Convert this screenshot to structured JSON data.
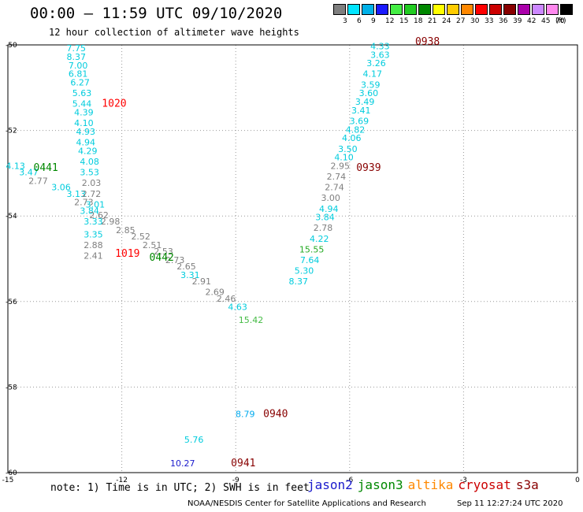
{
  "header": {
    "title": "00:00 – 11:59 UTC 09/10/2020",
    "subtitle": "12 hour collection of altimeter wave heights"
  },
  "scale": {
    "unit": "(ft)",
    "swatches": [
      {
        "color": "#7f7f7f",
        "label": "3"
      },
      {
        "color": "#00e5ff",
        "label": "6"
      },
      {
        "color": "#00b0e8",
        "label": "9"
      },
      {
        "color": "#1a1aff",
        "label": "12"
      },
      {
        "color": "#44ee44",
        "label": "15"
      },
      {
        "color": "#22cc22",
        "label": "18"
      },
      {
        "color": "#008800",
        "label": "21"
      },
      {
        "color": "#ffff00",
        "label": "24"
      },
      {
        "color": "#ffcc00",
        "label": "27"
      },
      {
        "color": "#ff8800",
        "label": "30"
      },
      {
        "color": "#ff0000",
        "label": "33"
      },
      {
        "color": "#cc0000",
        "label": "36"
      },
      {
        "color": "#880000",
        "label": "39"
      },
      {
        "color": "#aa00aa",
        "label": "42"
      },
      {
        "color": "#cc88ff",
        "label": "45"
      },
      {
        "color": "#ff88ee",
        "label": "70"
      },
      {
        "color": "#000000",
        "label": ""
      }
    ]
  },
  "footer": {
    "note": "note: 1) Time is in UTC; 2) SWH is in feet",
    "credit": "NOAA/NESDIS Center for Satellite Applications and Research",
    "stamp": "Sep 11 12:27:24 UTC 2020",
    "legend": [
      {
        "label": "jason2",
        "color": "#1a1acc"
      },
      {
        "label": "jason3",
        "color": "#008800"
      },
      {
        "label": "altika",
        "color": "#ff8800"
      },
      {
        "label": "cryosat",
        "color": "#cc0000"
      },
      {
        "label": "s3a",
        "color": "#880000"
      }
    ]
  },
  "chart_data": {
    "type": "scatter",
    "x_ticks": [
      "-15",
      "-12",
      "-9",
      "-6",
      "-3",
      "0"
    ],
    "y_ticks": [
      "-50",
      "-52",
      "-54",
      "-56",
      "-58",
      "-60"
    ],
    "xlim": [
      -15,
      0
    ],
    "ylim": [
      -60,
      -50
    ],
    "grid": true,
    "points": [
      {
        "lon": -13.2,
        "lat": -50.15,
        "text": "7.75",
        "color": "#00ccdd"
      },
      {
        "lon": -13.2,
        "lat": -50.35,
        "text": "8.37",
        "color": "#00ccdd"
      },
      {
        "lon": -13.15,
        "lat": -50.55,
        "text": "7.00",
        "color": "#00ccdd"
      },
      {
        "lon": -13.15,
        "lat": -50.75,
        "text": "6.81",
        "color": "#00ccdd"
      },
      {
        "lon": -13.1,
        "lat": -50.95,
        "text": "6.27",
        "color": "#00ccdd"
      },
      {
        "lon": -13.05,
        "lat": -51.2,
        "text": "5.63",
        "color": "#00ccdd"
      },
      {
        "lon": -13.05,
        "lat": -51.45,
        "text": "5.44",
        "color": "#00ccdd"
      },
      {
        "lon": -13.0,
        "lat": -51.65,
        "text": "4.39",
        "color": "#00ccdd"
      },
      {
        "lon": -13.0,
        "lat": -51.9,
        "text": "4.10",
        "color": "#00ccdd"
      },
      {
        "lon": -12.95,
        "lat": -52.1,
        "text": "4.93",
        "color": "#00ccdd"
      },
      {
        "lon": -12.95,
        "lat": -52.35,
        "text": "4.94",
        "color": "#00ccdd"
      },
      {
        "lon": -12.9,
        "lat": -52.55,
        "text": "4.29",
        "color": "#00ccdd"
      },
      {
        "lon": -12.85,
        "lat": -52.8,
        "text": "4.08",
        "color": "#00ccdd"
      },
      {
        "lon": -12.85,
        "lat": -53.05,
        "text": "3.53",
        "color": "#00ccdd"
      },
      {
        "lon": -14.8,
        "lat": -52.9,
        "text": "4.13",
        "color": "#00ccdd"
      },
      {
        "lon": -14.45,
        "lat": -53.05,
        "text": "3.47",
        "color": "#00ccdd"
      },
      {
        "lon": -14.2,
        "lat": -53.25,
        "text": "2.77",
        "color": "#7f7f7f"
      },
      {
        "lon": -13.6,
        "lat": -53.4,
        "text": "3.06",
        "color": "#00ccdd"
      },
      {
        "lon": -13.2,
        "lat": -53.55,
        "text": "3.13",
        "color": "#00ccdd"
      },
      {
        "lon": -12.8,
        "lat": -53.3,
        "text": "2.03",
        "color": "#7f7f7f"
      },
      {
        "lon": -12.8,
        "lat": -53.55,
        "text": "2.72",
        "color": "#7f7f7f"
      },
      {
        "lon": -13.0,
        "lat": -53.75,
        "text": "2.73",
        "color": "#7f7f7f"
      },
      {
        "lon": -12.7,
        "lat": -53.8,
        "text": "3.01",
        "color": "#00ccdd"
      },
      {
        "lon": -12.85,
        "lat": -53.95,
        "text": "3.84",
        "color": "#00ccdd"
      },
      {
        "lon": -12.6,
        "lat": -54.05,
        "text": "2.62",
        "color": "#7f7f7f"
      },
      {
        "lon": -12.3,
        "lat": -54.2,
        "text": "2.98",
        "color": "#7f7f7f"
      },
      {
        "lon": -12.75,
        "lat": -54.2,
        "text": "3.33",
        "color": "#00ccdd"
      },
      {
        "lon": -11.9,
        "lat": -54.4,
        "text": "2.85",
        "color": "#7f7f7f"
      },
      {
        "lon": -12.75,
        "lat": -54.5,
        "text": "3.35",
        "color": "#00ccdd"
      },
      {
        "lon": -11.5,
        "lat": -54.55,
        "text": "2.52",
        "color": "#7f7f7f"
      },
      {
        "lon": -12.75,
        "lat": -54.75,
        "text": "2.88",
        "color": "#7f7f7f"
      },
      {
        "lon": -11.2,
        "lat": -54.75,
        "text": "2.51",
        "color": "#7f7f7f"
      },
      {
        "lon": -12.75,
        "lat": -55.0,
        "text": "2.41",
        "color": "#7f7f7f"
      },
      {
        "lon": -10.9,
        "lat": -54.9,
        "text": "2.53",
        "color": "#7f7f7f"
      },
      {
        "lon": -10.6,
        "lat": -55.1,
        "text": "2.73",
        "color": "#7f7f7f"
      },
      {
        "lon": -10.3,
        "lat": -55.25,
        "text": "2.65",
        "color": "#7f7f7f"
      },
      {
        "lon": -10.2,
        "lat": -55.45,
        "text": "3.31",
        "color": "#00ccdd"
      },
      {
        "lon": -9.9,
        "lat": -55.6,
        "text": "2.91",
        "color": "#7f7f7f"
      },
      {
        "lon": -9.55,
        "lat": -55.85,
        "text": "2.69",
        "color": "#7f7f7f"
      },
      {
        "lon": -9.25,
        "lat": -56.0,
        "text": "2.46",
        "color": "#7f7f7f"
      },
      {
        "lon": -8.95,
        "lat": -56.2,
        "text": "4.63",
        "color": "#00ccdd"
      },
      {
        "lon": -8.6,
        "lat": -56.5,
        "text": "15.42",
        "color": "#44bb44"
      },
      {
        "lon": -5.2,
        "lat": -50.1,
        "text": "4.33",
        "color": "#00ccdd"
      },
      {
        "lon": -5.2,
        "lat": -50.3,
        "text": "3.63",
        "color": "#00ccdd"
      },
      {
        "lon": -5.3,
        "lat": -50.5,
        "text": "3.26",
        "color": "#00ccdd"
      },
      {
        "lon": -5.4,
        "lat": -50.75,
        "text": "4.17",
        "color": "#00ccdd"
      },
      {
        "lon": -5.45,
        "lat": -51.0,
        "text": "3.59",
        "color": "#00ccdd"
      },
      {
        "lon": -5.5,
        "lat": -51.2,
        "text": "3.60",
        "color": "#00ccdd"
      },
      {
        "lon": -5.6,
        "lat": -51.4,
        "text": "3.49",
        "color": "#00ccdd"
      },
      {
        "lon": -5.7,
        "lat": -51.6,
        "text": "3.41",
        "color": "#00ccdd"
      },
      {
        "lon": -5.75,
        "lat": -51.85,
        "text": "3.69",
        "color": "#00ccdd"
      },
      {
        "lon": -5.85,
        "lat": -52.05,
        "text": "4.82",
        "color": "#00ccdd"
      },
      {
        "lon": -5.95,
        "lat": -52.25,
        "text": "4.06",
        "color": "#00ccdd"
      },
      {
        "lon": -6.05,
        "lat": -52.5,
        "text": "3.50",
        "color": "#00ccdd"
      },
      {
        "lon": -6.15,
        "lat": -52.7,
        "text": "4.10",
        "color": "#00ccdd"
      },
      {
        "lon": -6.25,
        "lat": -52.9,
        "text": "2.95",
        "color": "#7f7f7f"
      },
      {
        "lon": -6.35,
        "lat": -53.15,
        "text": "2.74",
        "color": "#7f7f7f"
      },
      {
        "lon": -6.4,
        "lat": -53.4,
        "text": "2.74",
        "color": "#7f7f7f"
      },
      {
        "lon": -6.5,
        "lat": -53.65,
        "text": "3.00",
        "color": "#7f7f7f"
      },
      {
        "lon": -6.55,
        "lat": -53.9,
        "text": "4.94",
        "color": "#00ccdd"
      },
      {
        "lon": -6.65,
        "lat": -54.1,
        "text": "3.84",
        "color": "#00ccdd"
      },
      {
        "lon": -6.7,
        "lat": -54.35,
        "text": "2.78",
        "color": "#7f7f7f"
      },
      {
        "lon": -6.8,
        "lat": -54.6,
        "text": "4.22",
        "color": "#00ccdd"
      },
      {
        "lon": -7.0,
        "lat": -54.85,
        "text": "15.55",
        "color": "#22aa22"
      },
      {
        "lon": -7.05,
        "lat": -55.1,
        "text": "7.64",
        "color": "#00ccdd"
      },
      {
        "lon": -7.2,
        "lat": -55.35,
        "text": "5.30",
        "color": "#00ccdd"
      },
      {
        "lon": -7.35,
        "lat": -55.6,
        "text": "8.37",
        "color": "#00ccdd"
      },
      {
        "lon": -8.75,
        "lat": -58.7,
        "text": "8.79",
        "color": "#00aaee"
      },
      {
        "lon": -10.1,
        "lat": -59.3,
        "text": "5.76",
        "color": "#00ccdd"
      },
      {
        "lon": -10.4,
        "lat": -59.85,
        "text": "10.27",
        "color": "#1a1acc"
      }
    ],
    "passes": [
      {
        "lon": -12.2,
        "lat": -51.45,
        "text": "1020",
        "color": "#ff0000"
      },
      {
        "lon": -14.0,
        "lat": -52.95,
        "text": "0441",
        "color": "#008800"
      },
      {
        "lon": -11.85,
        "lat": -54.95,
        "text": "1019",
        "color": "#ff0000"
      },
      {
        "lon": -10.95,
        "lat": -55.05,
        "text": "0442",
        "color": "#008800"
      },
      {
        "lon": -3.95,
        "lat": -50.0,
        "text": "0938",
        "color": "#880000"
      },
      {
        "lon": -5.5,
        "lat": -52.95,
        "text": "0939",
        "color": "#880000"
      },
      {
        "lon": -7.95,
        "lat": -58.7,
        "text": "0940",
        "color": "#880000"
      },
      {
        "lon": -8.8,
        "lat": -59.85,
        "text": "0941",
        "color": "#880000"
      }
    ]
  }
}
